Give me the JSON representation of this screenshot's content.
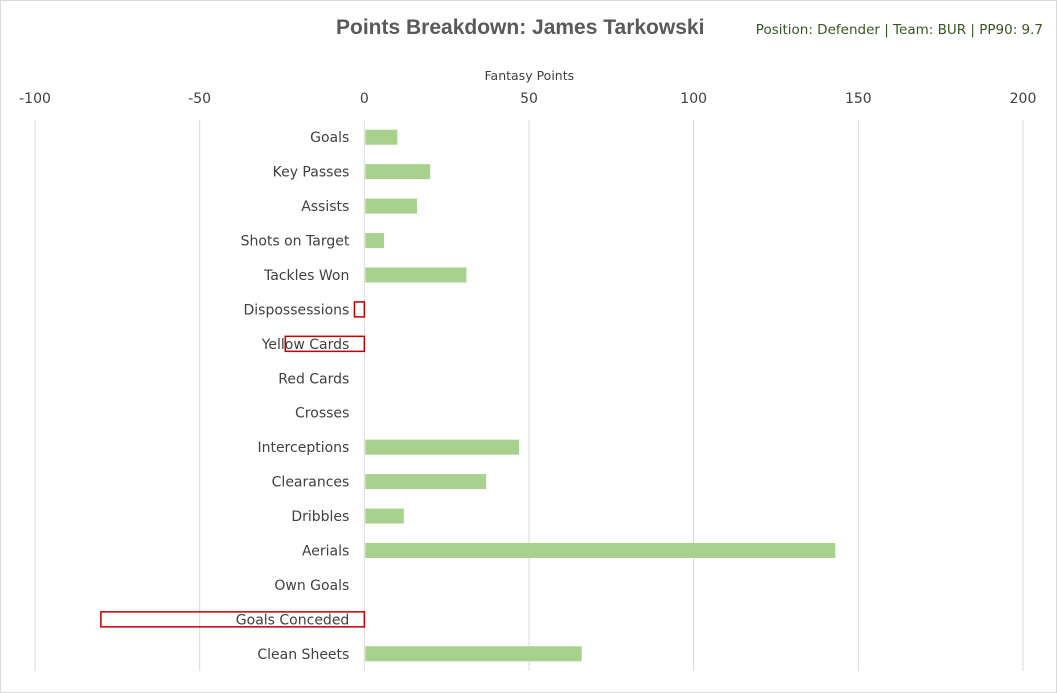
{
  "title": "Points Breakdown: James Tarkowski",
  "subtitle": "Position: Defender | Team: BUR | PP90: 9.7",
  "colors": {
    "positive_fill": "#a9d18e",
    "negative_outline": "#c00000",
    "gridline": "#d9d9d9",
    "text": "#404040",
    "title": "#595959",
    "subtitle": "#375623"
  },
  "chart_data": {
    "type": "bar",
    "orientation": "horizontal",
    "title": "Points Breakdown: James Tarkowski",
    "xlabel": "Fantasy Points",
    "ylabel": "",
    "xlim": [
      -100,
      200
    ],
    "xticks": [
      -100,
      -50,
      0,
      50,
      100,
      150,
      200
    ],
    "xtick_labels": [
      "-100",
      "-50",
      "0",
      "50",
      "100",
      "150",
      "200"
    ],
    "x_axis_position": "top",
    "grid": true,
    "categories": [
      "Goals",
      "Key Passes",
      "Assists",
      "Shots on Target",
      "Tackles Won",
      "Dispossessions",
      "Yellow Cards",
      "Red Cards",
      "Crosses",
      "Interceptions",
      "Clearances",
      "Dribbles",
      "Aerials",
      "Own Goals",
      "Goals Conceded",
      "Clean Sheets"
    ],
    "values": [
      10,
      20,
      16,
      6,
      31,
      -3,
      -24,
      0,
      0,
      47,
      37,
      12,
      143,
      0,
      -80,
      66
    ]
  }
}
